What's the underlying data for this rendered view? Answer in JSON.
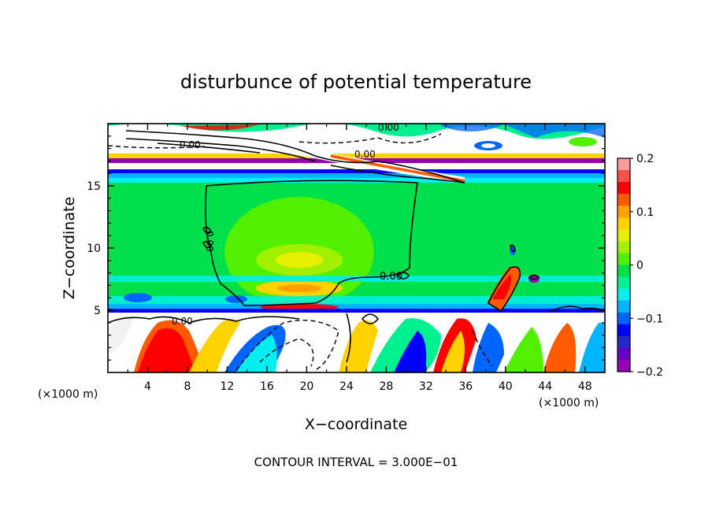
{
  "chart_data": {
    "type": "heatmap",
    "title": "disturbunce of potential temperature",
    "xlabel": "X−coordinate",
    "ylabel": "Z−coordinate",
    "x_unit_left": "(×1000 m)",
    "x_unit_right": "(×1000 m)",
    "footer": "CONTOUR INTERVAL = 3.000E−01",
    "xlim": [
      0,
      50
    ],
    "ylim": [
      0,
      20
    ],
    "x_ticks": [
      "4",
      "8",
      "12",
      "16",
      "20",
      "24",
      "28",
      "32",
      "36",
      "40",
      "44",
      "48"
    ],
    "y_ticks": [
      "5",
      "10",
      "15"
    ],
    "colorbar": {
      "range": [
        -0.2,
        0.2
      ],
      "tick_labels": [
        "0.2",
        "0.1",
        "0",
        "−0.1",
        "−0.2"
      ],
      "tick_values": [
        0.2,
        0.1,
        0,
        -0.1,
        -0.2
      ],
      "colors": [
        "#ff9b9b",
        "#ff5050",
        "#ff0000",
        "#ff5a00",
        "#ffa000",
        "#ffd200",
        "#e6f000",
        "#a0f000",
        "#50f000",
        "#00e04a",
        "#00f090",
        "#00f0f0",
        "#00b4ff",
        "#0064ff",
        "#0000ff",
        "#2828c8",
        "#6400c8",
        "#9600b4"
      ]
    },
    "contour_labels": [
      "0.00",
      "0.00",
      "0.00",
      "0.00",
      "0.00",
      "0.00"
    ]
  }
}
